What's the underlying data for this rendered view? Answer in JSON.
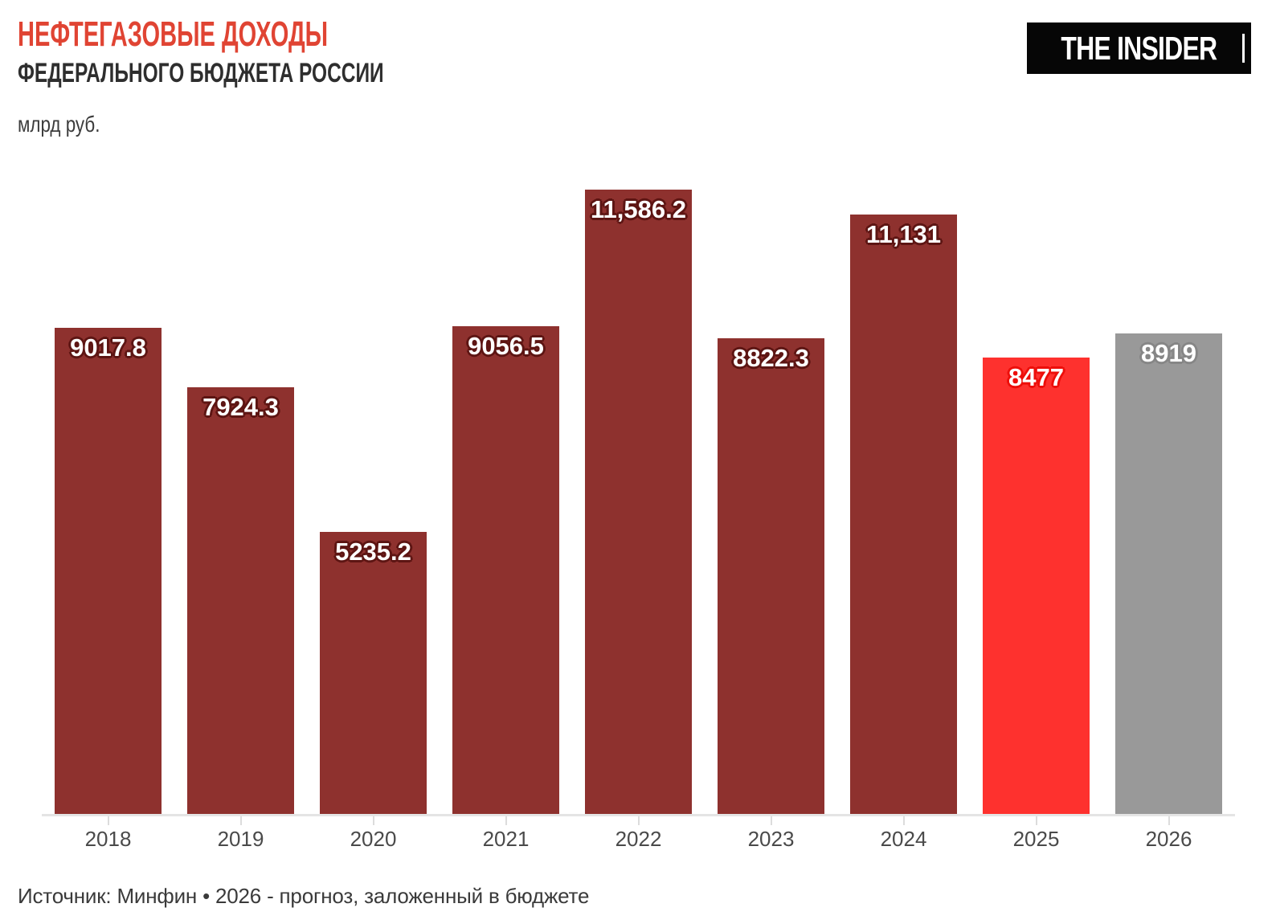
{
  "header": {
    "title_line1": "НЕФТЕГАЗОВЫЕ ДОХОДЫ",
    "title_line2": "ФЕДЕРАЛЬНОГО БЮДЖЕТА РОССИИ",
    "unit": "млрд руб.",
    "logo_text": "THE INSIDER"
  },
  "footer": {
    "source": "Источник: Минфин • 2026 - прогноз, заложенный в бюджете"
  },
  "colors": {
    "title_accent": "#E04433",
    "title_dark": "#2e2e2e",
    "bar_default": "#8E312E",
    "bar_highlight": "#FE312E",
    "bar_forecast": "#999999",
    "outline_default": "#5D1513",
    "outline_highlight": "#ED0E0A",
    "outline_forecast": "#868686",
    "axis_line": "#E4E4E4",
    "tick": "#DCDCDC",
    "axis_label": "#4A4A4A",
    "source_text": "#3A3A3A",
    "logo_bg": "#060606",
    "bar_label_text": "#FFFFFF"
  },
  "chart_data": {
    "type": "bar",
    "title": "НЕФТЕГАЗОВЫЕ ДОХОДЫ ФЕДЕРАЛЬНОГО БЮДЖЕТА РОССИИ",
    "subtitle": "млрд руб.",
    "xlabel": "",
    "ylabel": "млрд руб.",
    "categories": [
      "2018",
      "2019",
      "2020",
      "2021",
      "2022",
      "2023",
      "2024",
      "2025",
      "2026"
    ],
    "values": [
      9017.8,
      7924.3,
      5235.2,
      9056.5,
      11586.2,
      8822.3,
      11131,
      8477,
      8919
    ],
    "value_labels": [
      "9017.8",
      "7924.3",
      "5235.2",
      "9056.5",
      "11,586.2",
      "8822.3",
      "11,131",
      "8477",
      "8919"
    ],
    "bar_styles": [
      "default",
      "default",
      "default",
      "default",
      "default",
      "default",
      "default",
      "highlight",
      "forecast"
    ],
    "ylim": [
      0,
      11586.2
    ],
    "grid": false,
    "legend": false,
    "y_axis_visible": false,
    "value_label_position": "inside-top",
    "source": "Источник: Минфин • 2026 - прогноз, заложенный в бюджете"
  }
}
